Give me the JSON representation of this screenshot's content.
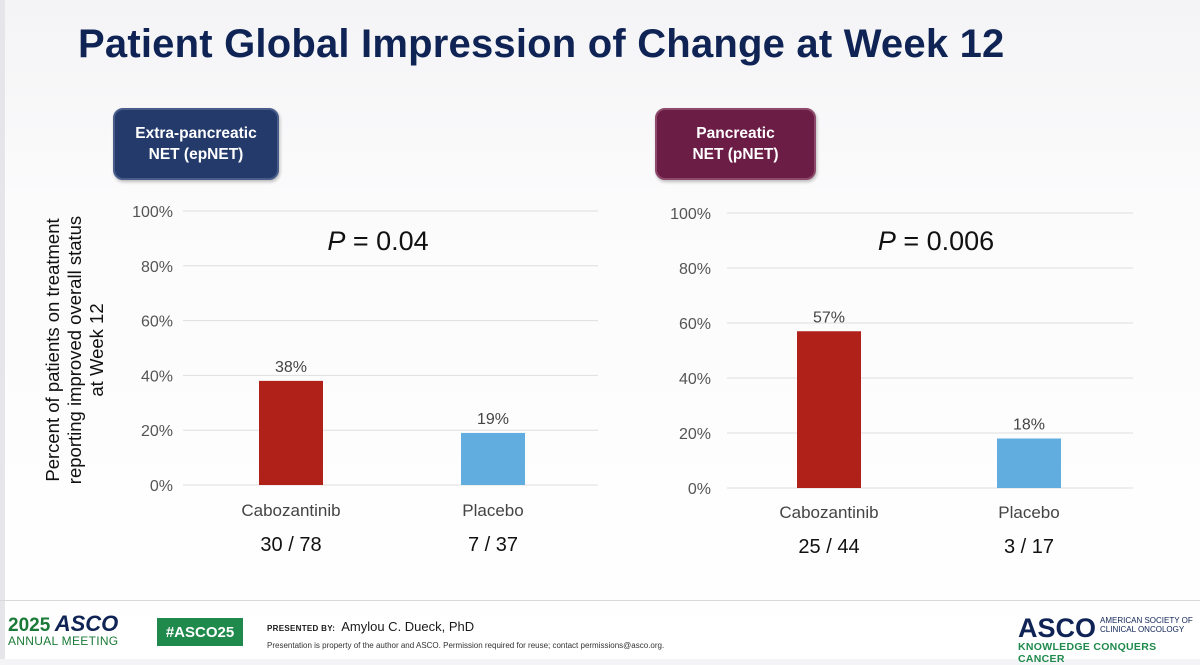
{
  "slide": {
    "title": "Patient Global Impression of Change at Week 12",
    "y_axis_label": "Percent of patients on treatment\nreporting improved overall status\nat Week 12"
  },
  "colors": {
    "title": "#0f2455",
    "cabozantinib": "#b0211a",
    "placebo": "#62ade0",
    "epNET_badge": "#233a6b",
    "pNET_badge": "#6b1d46"
  },
  "chart_data": [
    {
      "type": "bar",
      "subgroup_label": "Extra-pancreatic\nNET (epNET)",
      "p_value_label": "P",
      "p_value_text": " = 0.04",
      "categories": [
        "Cabozantinib",
        "Placebo"
      ],
      "values": [
        38,
        19
      ],
      "data_labels": [
        "38%",
        "19%"
      ],
      "fractions": [
        "30 / 78",
        "7 / 37"
      ],
      "yticks": [
        "0%",
        "20%",
        "40%",
        "60%",
        "80%",
        "100%"
      ],
      "ylim": [
        0,
        100
      ],
      "grid": true
    },
    {
      "type": "bar",
      "subgroup_label": "Pancreatic\nNET (pNET)",
      "p_value_label": "P",
      "p_value_text": " = 0.006",
      "categories": [
        "Cabozantinib",
        "Placebo"
      ],
      "values": [
        57,
        18
      ],
      "data_labels": [
        "57%",
        "18%"
      ],
      "fractions": [
        "25 / 44",
        "3 / 17"
      ],
      "yticks": [
        "0%",
        "20%",
        "40%",
        "60%",
        "80%",
        "100%"
      ],
      "ylim": [
        0,
        100
      ],
      "grid": true
    }
  ],
  "footer": {
    "meeting_year": "2025",
    "meeting_org": "ASCO",
    "meeting_name": "ANNUAL MEETING",
    "hashtag": "#ASCO25",
    "presented_by_label": "PRESENTED BY:",
    "presenter": "Amylou C. Dueck, PhD",
    "notice": "Presentation is property of the author and ASCO. Permission required for reuse; contact permissions@asco.org.",
    "logo_text": "ASCO",
    "society": "AMERICAN SOCIETY OF\nCLINICAL ONCOLOGY",
    "tagline": "KNOWLEDGE CONQUERS CANCER"
  }
}
